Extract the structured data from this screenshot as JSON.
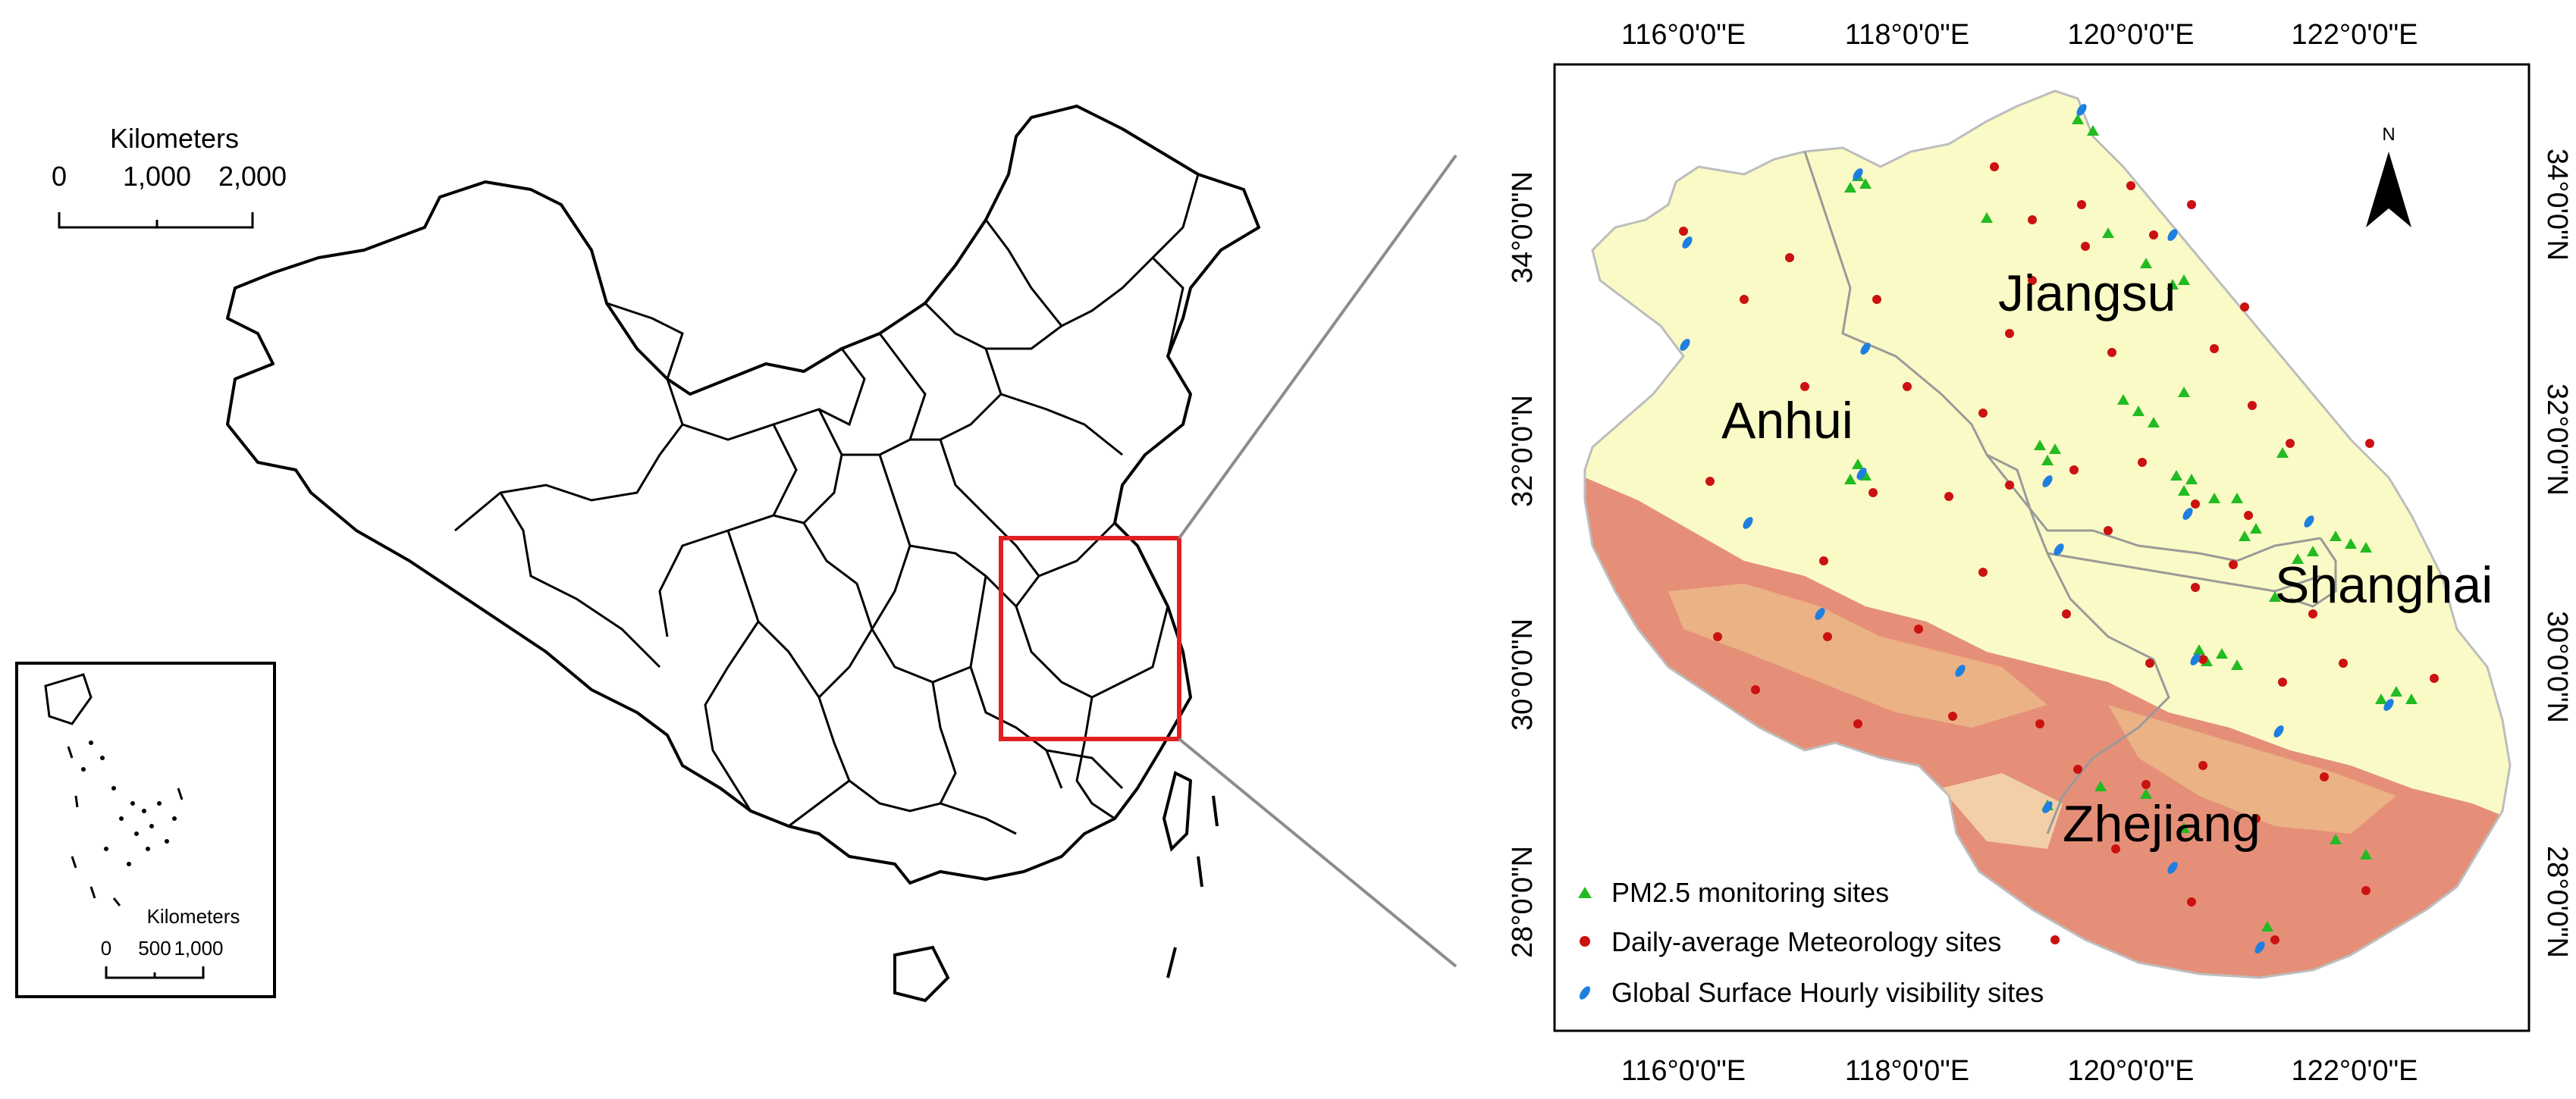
{
  "china_map": {
    "scalebar": {
      "unit": "Kilometers",
      "ticks": [
        "0",
        "1,000",
        "2,000"
      ]
    },
    "inset": {
      "unit": "Kilometers",
      "ticks": [
        "0",
        "500",
        "1,000"
      ]
    }
  },
  "study_map": {
    "lon_ticks": [
      "116°0'0\"E",
      "118°0'0\"E",
      "120°0'0\"E",
      "122°0'0\"E"
    ],
    "lat_ticks": [
      "34°0'0\"N",
      "32°0'0\"N",
      "30°0'0\"N",
      "28°0'0\"N"
    ],
    "north_label": "N",
    "regions": {
      "jiangsu": "Jiangsu",
      "anhui": "Anhui",
      "shanghai": "Shanghai",
      "zhejiang": "Zhejiang"
    },
    "legend": [
      {
        "label": "PM2.5 monitoring sites",
        "symbol": "triangle",
        "color": "#22bb22"
      },
      {
        "label": "Daily-average Meteorology sites",
        "symbol": "circle",
        "color": "#cc1111"
      },
      {
        "label": "Global Surface Hourly visibility sites",
        "symbol": "leaf",
        "color": "#1f7fe0"
      }
    ],
    "colors": {
      "land": "#fafac6",
      "mountain": "#e07b6a",
      "highlight": "#e02020",
      "pm25": "#22bb22",
      "met": "#cc1111",
      "visibility": "#1f7fe0"
    }
  }
}
